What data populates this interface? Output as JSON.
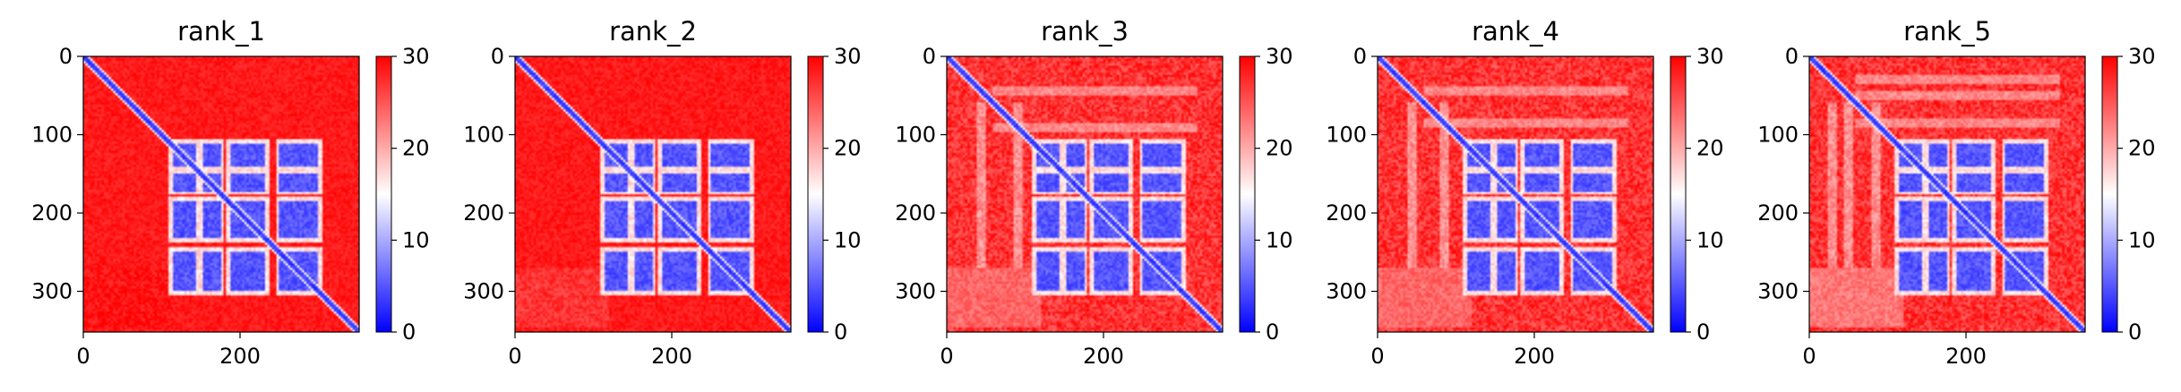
{
  "chart_data": [
    {
      "type": "heatmap",
      "title": "rank_1",
      "x_range": [
        0,
        352
      ],
      "y_range": [
        0,
        352
      ],
      "y_inverted": true,
      "xticks": [
        0,
        200
      ],
      "yticks": [
        0,
        100,
        200,
        300
      ],
      "colorbar": {
        "ticks": [
          0,
          10,
          20,
          30
        ],
        "range": [
          0,
          30
        ],
        "colors": [
          "#0000ff",
          "#ffffff",
          "#ff0000"
        ]
      },
      "features": {
        "interior_variation": "low",
        "lower_left_block_value": 27,
        "white_streak_x": []
      }
    },
    {
      "type": "heatmap",
      "title": "rank_2",
      "x_range": [
        0,
        352
      ],
      "y_range": [
        0,
        352
      ],
      "y_inverted": true,
      "xticks": [
        0,
        200
      ],
      "yticks": [
        0,
        100,
        200,
        300
      ],
      "colorbar": {
        "ticks": [
          0,
          10,
          20,
          30
        ],
        "range": [
          0,
          30
        ],
        "colors": [
          "#0000ff",
          "#ffffff",
          "#ff0000"
        ]
      },
      "features": {
        "interior_variation": "low",
        "lower_left_block_value": 25,
        "white_streak_x": []
      }
    },
    {
      "type": "heatmap",
      "title": "rank_3",
      "x_range": [
        0,
        352
      ],
      "y_range": [
        0,
        352
      ],
      "y_inverted": true,
      "xticks": [
        0,
        200
      ],
      "yticks": [
        0,
        100,
        200,
        300
      ],
      "colorbar": {
        "ticks": [
          0,
          10,
          20,
          30
        ],
        "range": [
          0,
          30
        ],
        "colors": [
          "#0000ff",
          "#ffffff",
          "#ff0000"
        ]
      },
      "features": {
        "interior_variation": "high",
        "lower_left_block_value": 22,
        "white_streak_x": [
          45,
          90
        ]
      }
    },
    {
      "type": "heatmap",
      "title": "rank_4",
      "x_range": [
        0,
        352
      ],
      "y_range": [
        0,
        352
      ],
      "y_inverted": true,
      "xticks": [
        0,
        200
      ],
      "yticks": [
        0,
        100,
        200,
        300
      ],
      "colorbar": {
        "ticks": [
          0,
          10,
          20,
          30
        ],
        "range": [
          0,
          30
        ],
        "colors": [
          "#0000ff",
          "#ffffff",
          "#ff0000"
        ]
      },
      "features": {
        "interior_variation": "high",
        "lower_left_block_value": 22,
        "white_streak_x": [
          45,
          85
        ]
      }
    },
    {
      "type": "heatmap",
      "title": "rank_5",
      "x_range": [
        0,
        352
      ],
      "y_range": [
        0,
        352
      ],
      "y_inverted": true,
      "xticks": [
        0,
        200
      ],
      "yticks": [
        0,
        100,
        200,
        300
      ],
      "colorbar": {
        "ticks": [
          0,
          10,
          20,
          30
        ],
        "range": [
          0,
          30
        ],
        "colors": [
          "#0000ff",
          "#ffffff",
          "#ff0000"
        ]
      },
      "features": {
        "interior_variation": "high",
        "lower_left_block_value": 21,
        "white_streak_x": [
          30,
          50,
          85
        ]
      }
    }
  ]
}
